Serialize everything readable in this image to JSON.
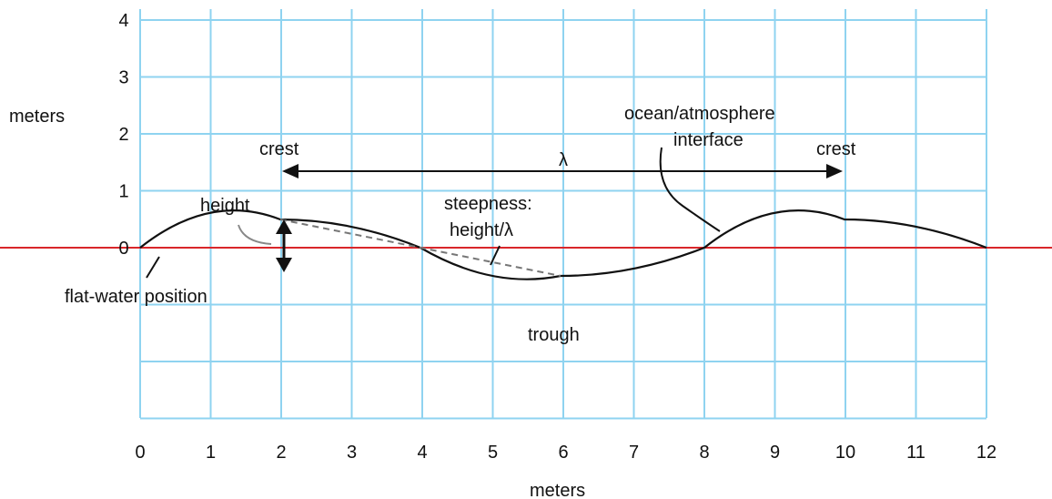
{
  "labels": {
    "y_axis": "meters",
    "x_axis": "meters",
    "crest_left": "crest",
    "crest_right": "crest",
    "wavelength": "λ",
    "height": "height",
    "steepness_line1": "steepness:",
    "steepness_line2": "height/λ",
    "interface_line1": "ocean/atmosphere",
    "interface_line2": "interface",
    "flat_water": "flat-water position",
    "trough": "trough"
  },
  "x_ticks": [
    "0",
    "1",
    "2",
    "3",
    "4",
    "5",
    "6",
    "7",
    "8",
    "9",
    "10",
    "11",
    "12"
  ],
  "y_ticks": [
    "4",
    "3",
    "2",
    "1",
    "0"
  ],
  "colors": {
    "grid": "#8fd3f0",
    "flat_water_line": "#d9262a",
    "wave": "#111111",
    "dashed": "#777777"
  }
}
